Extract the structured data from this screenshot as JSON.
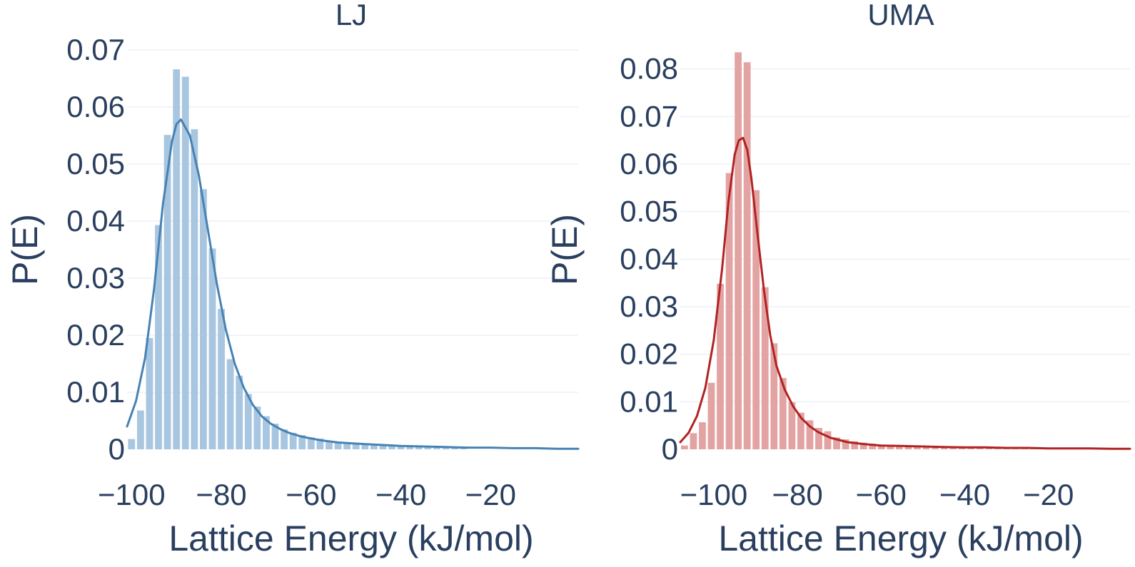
{
  "chart_data": [
    {
      "type": "bar",
      "title": "LJ",
      "xlabel": "Lattice Energy (kJ/mol)",
      "ylabel": "P(E)",
      "xlim": [
        -101,
        -0.5
      ],
      "ylim": [
        0,
        0.0725
      ],
      "xticks": [
        -100,
        -80,
        -60,
        -40,
        -20
      ],
      "xtick_labels": [
        "−100",
        "−80",
        "−60",
        "−40",
        "−20"
      ],
      "yticks": [
        0,
        0.01,
        0.02,
        0.03,
        0.04,
        0.05,
        0.06,
        0.07
      ],
      "ytick_labels": [
        "0",
        "0.01",
        "0.02",
        "0.03",
        "0.04",
        "0.05",
        "0.06",
        "0.07"
      ],
      "grid": true,
      "colors": {
        "bars": "#a9c6e0",
        "line": "#4682b4"
      },
      "histogram": {
        "bin_width": 2,
        "bin_centers": [
          -100,
          -98,
          -96,
          -94,
          -92,
          -90,
          -88,
          -86,
          -84,
          -82,
          -80,
          -78,
          -76,
          -74,
          -72,
          -70,
          -68,
          -66,
          -64,
          -62,
          -60,
          -58,
          -56,
          -54,
          -52,
          -50,
          -48,
          -46,
          -44,
          -42,
          -40,
          -38,
          -36,
          -34,
          -32,
          -30,
          -28,
          -26
        ],
        "values": [
          0.0018,
          0.0068,
          0.0195,
          0.0393,
          0.0551,
          0.0666,
          0.0653,
          0.0561,
          0.0456,
          0.0352,
          0.0246,
          0.0158,
          0.0129,
          0.0097,
          0.0075,
          0.0058,
          0.0045,
          0.0035,
          0.0029,
          0.0025,
          0.0021,
          0.0019,
          0.0015,
          0.0013,
          0.0012,
          0.0011,
          0.0009,
          0.0008,
          0.0007,
          0.0006,
          0.0005,
          0.0005,
          0.0004,
          0.0004,
          0.0003,
          0.0003,
          0.0002,
          0.0002
        ]
      },
      "kde": {
        "x": [
          -101,
          -99,
          -97,
          -95,
          -93,
          -91,
          -90,
          -89,
          -87,
          -85,
          -83,
          -81,
          -79,
          -77,
          -75,
          -73,
          -71,
          -69,
          -67,
          -65,
          -62,
          -58,
          -54,
          -50,
          -45,
          -40,
          -35,
          -30,
          -25,
          -20,
          -15,
          -10,
          -5,
          -0.5
        ],
        "y": [
          0.004,
          0.0085,
          0.016,
          0.028,
          0.043,
          0.054,
          0.057,
          0.0578,
          0.055,
          0.048,
          0.0385,
          0.029,
          0.021,
          0.015,
          0.0108,
          0.0078,
          0.0058,
          0.0045,
          0.0036,
          0.0029,
          0.0022,
          0.0016,
          0.0012,
          0.001,
          0.0008,
          0.0006,
          0.0005,
          0.0004,
          0.0003,
          0.0003,
          0.0002,
          0.0002,
          0.0001,
          0.0001
        ]
      }
    },
    {
      "type": "bar",
      "title": "UMA",
      "xlabel": "Lattice Energy (kJ/mol)",
      "ylabel": "P(E)",
      "xlim": [
        -108,
        -0.5
      ],
      "ylim": [
        0,
        0.0855
      ],
      "xticks": [
        -100,
        -80,
        -60,
        -40,
        -20
      ],
      "xtick_labels": [
        "−100",
        "−80",
        "−60",
        "−40",
        "−20"
      ],
      "yticks": [
        0,
        0.01,
        0.02,
        0.03,
        0.04,
        0.05,
        0.06,
        0.07,
        0.08
      ],
      "ytick_labels": [
        "0",
        "0.01",
        "0.02",
        "0.03",
        "0.04",
        "0.05",
        "0.06",
        "0.07",
        "0.08"
      ],
      "grid": true,
      "colors": {
        "bars": "#e3a3a3",
        "line": "#b22222"
      },
      "histogram": {
        "bin_width": 2.14,
        "bin_centers": [
          -107,
          -104.86,
          -102.72,
          -100.58,
          -98.44,
          -96.3,
          -94.16,
          -92.02,
          -89.88,
          -87.74,
          -85.6,
          -83.46,
          -81.32,
          -79.18,
          -77.04,
          -74.9,
          -72.76,
          -70.62,
          -68.48,
          -66.34,
          -64.2,
          -62.06,
          -59.92,
          -57.78,
          -55.64,
          -53.5,
          -51.36,
          -49.22,
          -47.08,
          -44.94,
          -42.8,
          -40.66,
          -38.52,
          -36.38,
          -34.24,
          -32.1,
          -29.96,
          -27.82,
          -25.68,
          -23.54,
          -21.4
        ],
        "values": [
          0.0008,
          0.0034,
          0.0057,
          0.014,
          0.0348,
          0.0581,
          0.0835,
          0.0814,
          0.0545,
          0.0341,
          0.0223,
          0.015,
          0.0099,
          0.0077,
          0.0061,
          0.0045,
          0.0038,
          0.0025,
          0.0021,
          0.0017,
          0.0014,
          0.0012,
          0.001,
          0.0008,
          0.0007,
          0.0007,
          0.0006,
          0.0005,
          0.0005,
          0.0004,
          0.0004,
          0.0004,
          0.0003,
          0.0003,
          0.0003,
          0.0003,
          0.0002,
          0.0002,
          0.0002,
          0.0002,
          0.0002
        ]
      },
      "kde": {
        "x": [
          -108,
          -106,
          -104,
          -102,
          -100,
          -98,
          -96.5,
          -95,
          -94,
          -93,
          -92,
          -91,
          -89.5,
          -88,
          -86.5,
          -85,
          -83,
          -81,
          -79,
          -77,
          -75,
          -72,
          -68,
          -64,
          -60,
          -55,
          -50,
          -45,
          -40,
          -35,
          -30,
          -25,
          -20,
          -15,
          -10,
          -5,
          -0.5
        ],
        "y": [
          0.0015,
          0.0035,
          0.007,
          0.013,
          0.023,
          0.038,
          0.052,
          0.062,
          0.065,
          0.0655,
          0.063,
          0.057,
          0.045,
          0.0335,
          0.024,
          0.0175,
          0.0125,
          0.009,
          0.0065,
          0.0048,
          0.0036,
          0.0024,
          0.0015,
          0.0011,
          0.0008,
          0.0007,
          0.0006,
          0.0005,
          0.0004,
          0.0004,
          0.0003,
          0.0003,
          0.0002,
          0.0002,
          0.0002,
          0.0001,
          0.0001
        ]
      }
    }
  ]
}
